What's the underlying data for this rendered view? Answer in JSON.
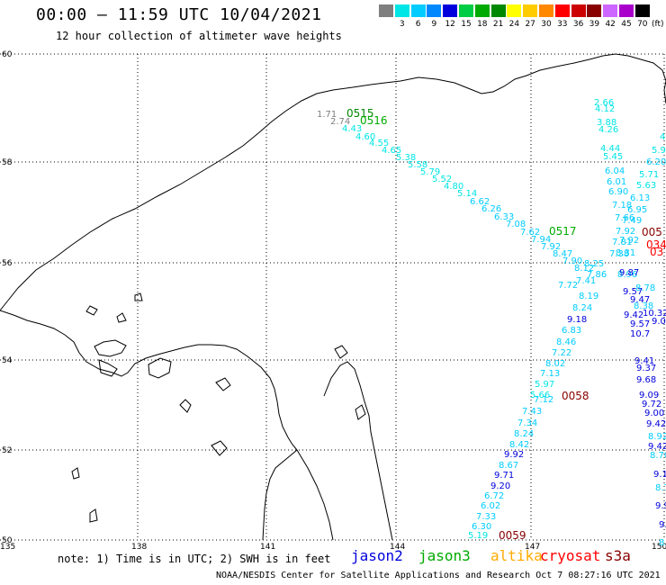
{
  "header": {
    "title": "00:00 – 11:59 UTC 10/04/2021",
    "subtitle": "12 hour collection of altimeter wave heights"
  },
  "legend": {
    "unit": "(ft)",
    "items": [
      {
        "label": "",
        "color": "#7f7f7f"
      },
      {
        "label": "3",
        "color": "#00e5e5"
      },
      {
        "label": "6",
        "color": "#00ccff"
      },
      {
        "label": "9",
        "color": "#0088ff"
      },
      {
        "label": "12",
        "color": "#0000dd"
      },
      {
        "label": "15",
        "color": "#00cc44"
      },
      {
        "label": "18",
        "color": "#00aa00"
      },
      {
        "label": "21",
        "color": "#008800"
      },
      {
        "label": "24",
        "color": "#ffff00"
      },
      {
        "label": "27",
        "color": "#ffcc00"
      },
      {
        "label": "30",
        "color": "#ff8800"
      },
      {
        "label": "33",
        "color": "#ff0000"
      },
      {
        "label": "36",
        "color": "#cc0000"
      },
      {
        "label": "39",
        "color": "#880000"
      },
      {
        "label": "42",
        "color": "#cc66ff"
      },
      {
        "label": "45",
        "color": "#aa00cc"
      },
      {
        "label": "70",
        "color": "#000000"
      }
    ]
  },
  "axes": {
    "lat_labels": [
      "60",
      "58",
      "56",
      "54",
      "52",
      "50"
    ],
    "lon_labels": [
      "135",
      "138",
      "141",
      "144",
      "147",
      "150"
    ]
  },
  "track_labels": [
    {
      "text": "0515",
      "color": "#008800"
    },
    {
      "text": "0516",
      "color": "#00aa00"
    },
    {
      "text": "0517",
      "color": "#00aa00"
    },
    {
      "text": "0058",
      "color": "#880000"
    },
    {
      "text": "0059",
      "color": "#880000"
    },
    {
      "text": "005",
      "color": "#880000"
    },
    {
      "text": "034",
      "color": "#ff0000"
    },
    {
      "text": "03",
      "color": "#ff0000"
    }
  ],
  "wave_heights": [
    {
      "text": "1.71",
      "color": "#7f7f7f"
    },
    {
      "text": "2.74",
      "color": "#7f7f7f"
    },
    {
      "text": "4.43",
      "color": "#00e5e5"
    },
    {
      "text": "4.60",
      "color": "#00e5e5"
    },
    {
      "text": "4.55",
      "color": "#00e5e5"
    },
    {
      "text": "4.65",
      "color": "#00e5e5"
    },
    {
      "text": "5.38",
      "color": "#00e5e5"
    },
    {
      "text": "5.58",
      "color": "#00e5e5"
    },
    {
      "text": "5.79",
      "color": "#00e5e5"
    },
    {
      "text": "5.52",
      "color": "#00e5e5"
    },
    {
      "text": "4.80",
      "color": "#00e5e5"
    },
    {
      "text": "5.14",
      "color": "#00e5e5"
    },
    {
      "text": "6.62",
      "color": "#00ccff"
    },
    {
      "text": "6.26",
      "color": "#00ccff"
    },
    {
      "text": "6.33",
      "color": "#00ccff"
    },
    {
      "text": "7.08",
      "color": "#00ccff"
    },
    {
      "text": "7.62",
      "color": "#00ccff"
    },
    {
      "text": "7.94",
      "color": "#00ccff"
    },
    {
      "text": "7.92",
      "color": "#00ccff"
    },
    {
      "text": "8.47",
      "color": "#00ccff"
    },
    {
      "text": "7.90",
      "color": "#00ccff"
    },
    {
      "text": "8.12",
      "color": "#00ccff"
    },
    {
      "text": "8.25",
      "color": "#00ccff"
    },
    {
      "text": "7.86",
      "color": "#00ccff"
    },
    {
      "text": "7.72",
      "color": "#00ccff"
    },
    {
      "text": "7.41",
      "color": "#00ccff"
    },
    {
      "text": "8.19",
      "color": "#00ccff"
    },
    {
      "text": "8.24",
      "color": "#00ccff"
    },
    {
      "text": "9.18",
      "color": "#0000dd"
    },
    {
      "text": "6.83",
      "color": "#00ccff"
    },
    {
      "text": "8.46",
      "color": "#00ccff"
    },
    {
      "text": "7.22",
      "color": "#00ccff"
    },
    {
      "text": "8.02",
      "color": "#00ccff"
    },
    {
      "text": "7.13",
      "color": "#00ccff"
    },
    {
      "text": "5.97",
      "color": "#00e5e5"
    },
    {
      "text": "5.66",
      "color": "#00e5e5"
    },
    {
      "text": "7.12",
      "color": "#00ccff"
    },
    {
      "text": "7.43",
      "color": "#00ccff"
    },
    {
      "text": "7.34",
      "color": "#00ccff"
    },
    {
      "text": "8.24",
      "color": "#00ccff"
    },
    {
      "text": "8.42",
      "color": "#00ccff"
    },
    {
      "text": "9.92",
      "color": "#0000dd"
    },
    {
      "text": "8.67",
      "color": "#00ccff"
    },
    {
      "text": "9.71",
      "color": "#0000dd"
    },
    {
      "text": "9.20",
      "color": "#0000dd"
    },
    {
      "text": "6.72",
      "color": "#00ccff"
    },
    {
      "text": "6.02",
      "color": "#00ccff"
    },
    {
      "text": "7.33",
      "color": "#00ccff"
    },
    {
      "text": "6.30",
      "color": "#00ccff"
    },
    {
      "text": "5.19",
      "color": "#00e5e5"
    },
    {
      "text": "2.66",
      "color": "#00e5e5"
    },
    {
      "text": "4.12",
      "color": "#00e5e5"
    },
    {
      "text": "3.88",
      "color": "#00e5e5"
    },
    {
      "text": "4.26",
      "color": "#00e5e5"
    },
    {
      "text": "4.44",
      "color": "#00e5e5"
    },
    {
      "text": "5.45",
      "color": "#00e5e5"
    },
    {
      "text": "6.04",
      "color": "#00ccff"
    },
    {
      "text": "6.01",
      "color": "#00ccff"
    },
    {
      "text": "6.90",
      "color": "#00ccff"
    },
    {
      "text": "7.18",
      "color": "#00ccff"
    },
    {
      "text": "7.66",
      "color": "#00ccff"
    },
    {
      "text": "7.92",
      "color": "#00ccff"
    },
    {
      "text": "7.81",
      "color": "#00ccff"
    },
    {
      "text": "7.38",
      "color": "#00ccff"
    },
    {
      "text": "4",
      "color": "#00e5e5"
    },
    {
      "text": "5.9",
      "color": "#00e5e5"
    },
    {
      "text": "6.20",
      "color": "#00ccff"
    },
    {
      "text": "5.71",
      "color": "#00e5e5"
    },
    {
      "text": "5.63",
      "color": "#00e5e5"
    },
    {
      "text": "6.13",
      "color": "#00ccff"
    },
    {
      "text": "6.95",
      "color": "#00ccff"
    },
    {
      "text": "7.49",
      "color": "#00ccff"
    },
    {
      "text": "7.92",
      "color": "#00ccff"
    },
    {
      "text": "8.31",
      "color": "#00ccff"
    },
    {
      "text": "8.96",
      "color": "#00ccff"
    },
    {
      "text": "9.87",
      "color": "#0000dd"
    },
    {
      "text": "9.57",
      "color": "#0000dd"
    },
    {
      "text": "8.78",
      "color": "#00ccff"
    },
    {
      "text": "9.47",
      "color": "#0000dd"
    },
    {
      "text": "8.38",
      "color": "#00ccff"
    },
    {
      "text": "9.42",
      "color": "#0000dd"
    },
    {
      "text": "10.32",
      "color": "#0000dd"
    },
    {
      "text": "9.57",
      "color": "#0000dd"
    },
    {
      "text": "9.06",
      "color": "#0000dd"
    },
    {
      "text": "10.7",
      "color": "#0000dd"
    },
    {
      "text": "9.41",
      "color": "#0000dd"
    },
    {
      "text": "9.37",
      "color": "#0000dd"
    },
    {
      "text": "9.68",
      "color": "#0000dd"
    },
    {
      "text": "9.09",
      "color": "#0000dd"
    },
    {
      "text": "9.72",
      "color": "#0000dd"
    },
    {
      "text": "9.00",
      "color": "#0000dd"
    },
    {
      "text": "9.42",
      "color": "#0000dd"
    },
    {
      "text": "8.92",
      "color": "#00ccff"
    },
    {
      "text": "9.42",
      "color": "#0000dd"
    },
    {
      "text": "8.70",
      "color": "#00ccff"
    },
    {
      "text": "9.13",
      "color": "#0000dd"
    },
    {
      "text": "8.7",
      "color": "#00ccff"
    },
    {
      "text": "9.9",
      "color": "#0000dd"
    },
    {
      "text": "9.3",
      "color": "#0000dd"
    },
    {
      "text": "8.",
      "color": "#00ccff"
    },
    {
      "text": "9.",
      "color": "#0000dd"
    }
  ],
  "footer": {
    "note": "note: 1) Time is in UTC; 2) SWH is in feet",
    "satellites": [
      {
        "name": "jason2",
        "color": "#0000dd"
      },
      {
        "name": "jason3",
        "color": "#00aa00"
      },
      {
        "name": "altika",
        "color": "#ffaa00"
      },
      {
        "name": "cryosat",
        "color": "#ff0000"
      },
      {
        "name": "s3a",
        "color": "#880000"
      }
    ],
    "credit": "NOAA/NESDIS Center for Satellite Applications and Research   Oct  7 08:27:16 UTC 2021"
  }
}
